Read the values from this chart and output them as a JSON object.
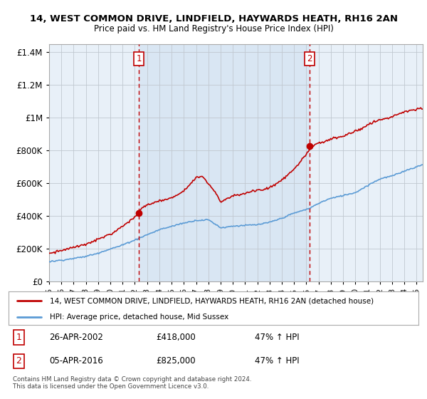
{
  "title": "14, WEST COMMON DRIVE, LINDFIELD, HAYWARDS HEATH, RH16 2AN",
  "subtitle": "Price paid vs. HM Land Registry's House Price Index (HPI)",
  "legend_line1": "14, WEST COMMON DRIVE, LINDFIELD, HAYWARDS HEATH, RH16 2AN (detached house)",
  "legend_line2": "HPI: Average price, detached house, Mid Sussex",
  "annotation1": {
    "label": "1",
    "date": 2002.32,
    "price": 418000,
    "date_str": "26-APR-2002",
    "price_str": "£418,000",
    "hpi_str": "47% ↑ HPI"
  },
  "annotation2": {
    "label": "2",
    "date": 2016.27,
    "price": 825000,
    "date_str": "05-APR-2016",
    "price_str": "£825,000",
    "hpi_str": "47% ↑ HPI"
  },
  "footer1": "Contains HM Land Registry data © Crown copyright and database right 2024.",
  "footer2": "This data is licensed under the Open Government Licence v3.0.",
  "hpi_color": "#5b9bd5",
  "price_color": "#c00000",
  "vline_color": "#c00000",
  "shade_color": "#ddeeff",
  "ylim": [
    0,
    1400000
  ],
  "xlim": [
    1995.0,
    2025.5
  ],
  "chart_bg": "#e8f0f8",
  "background_color": "#ffffff",
  "grid_color": "#c0c8d0"
}
